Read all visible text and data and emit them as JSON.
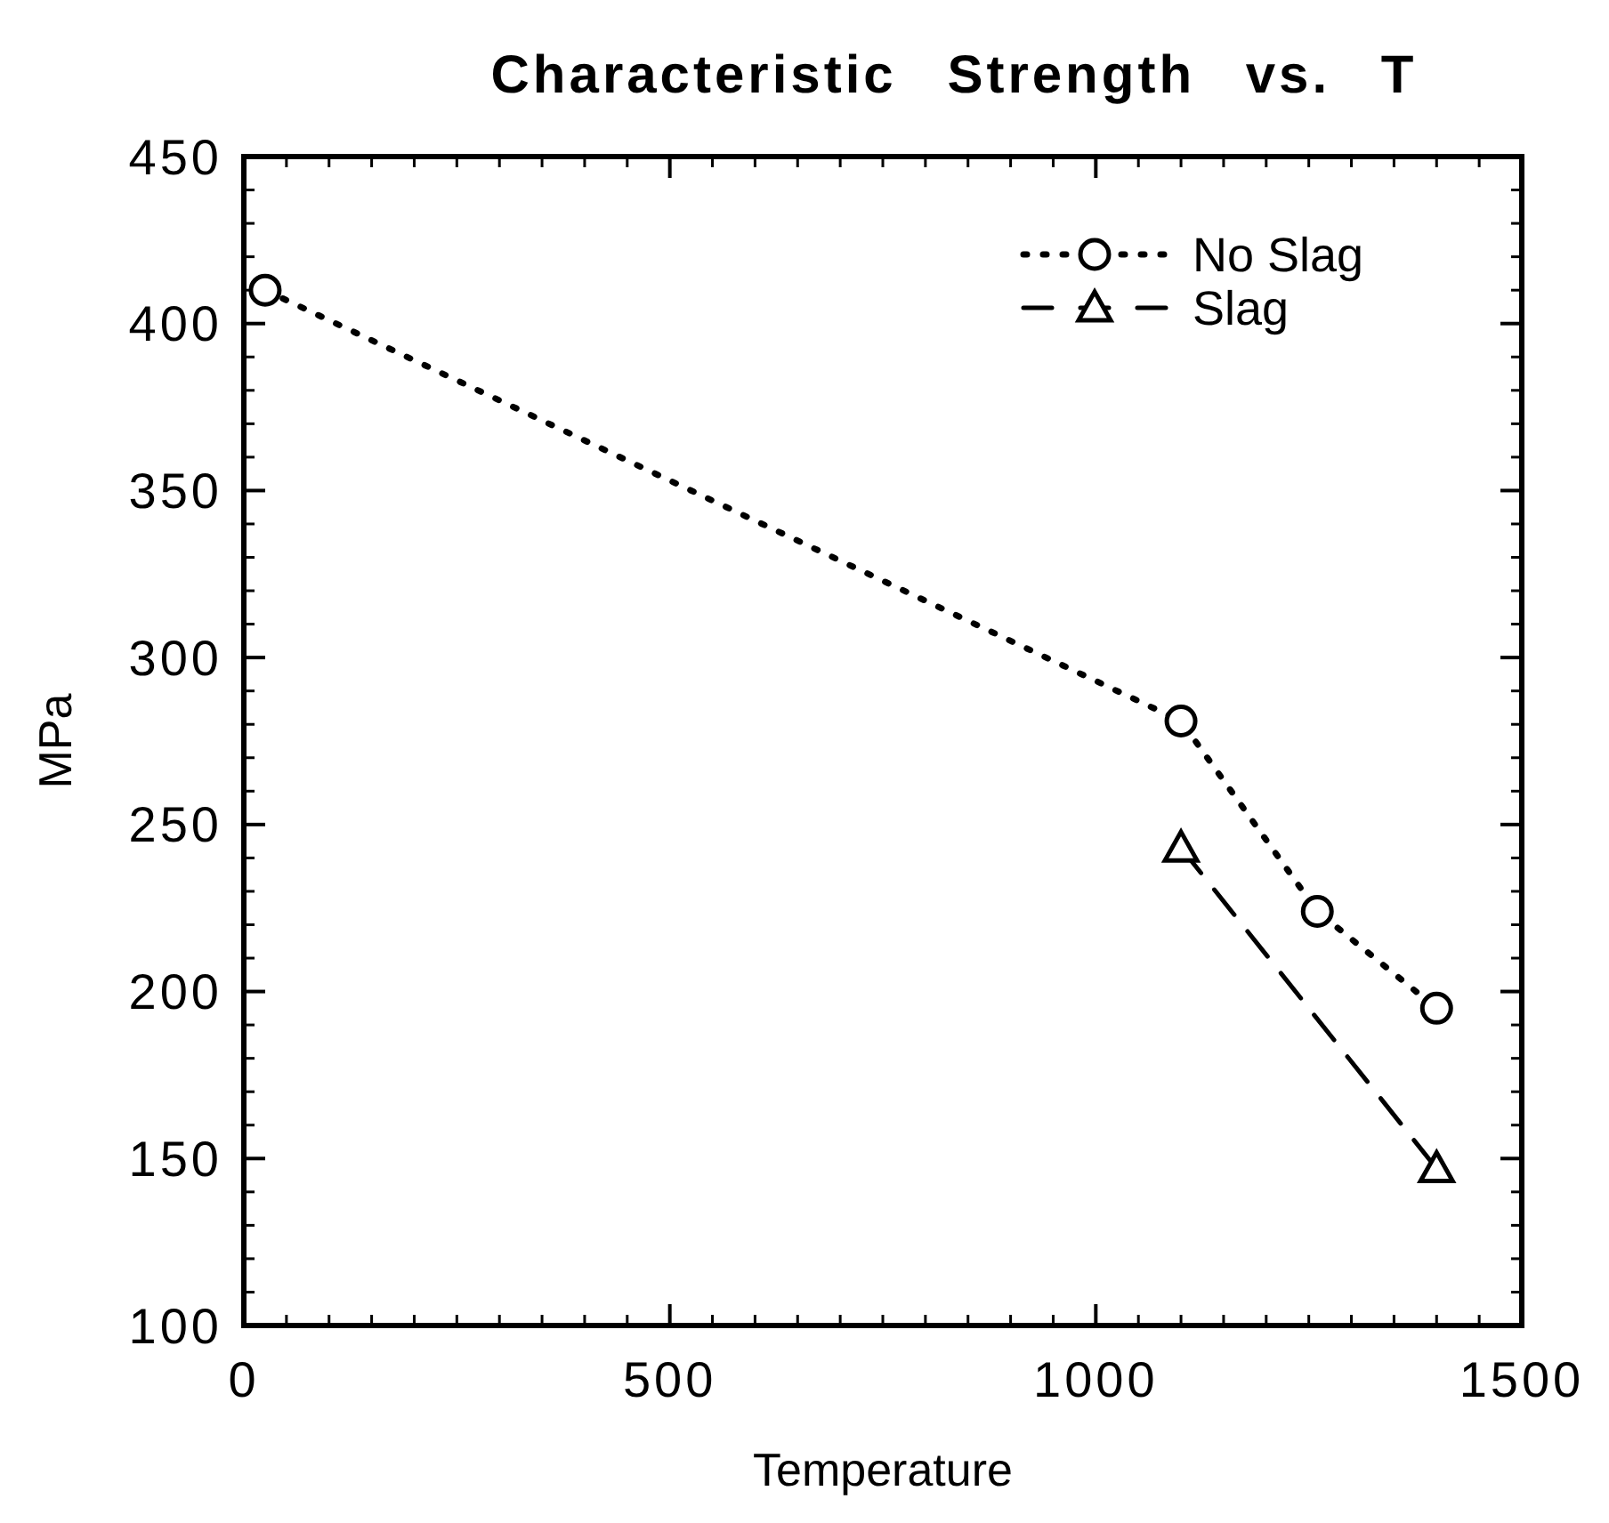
{
  "chart_data": {
    "type": "line",
    "title": "Characteristic Strength vs. T",
    "xlabel": "Temperature",
    "ylabel": "MPa",
    "xlim": [
      0,
      1500
    ],
    "xticks": [
      0,
      500,
      1000,
      1500
    ],
    "ylim": [
      100,
      450
    ],
    "yticks": [
      100,
      150,
      200,
      250,
      300,
      350,
      400,
      450
    ],
    "grid": false,
    "legend": "top right",
    "series": [
      {
        "name": "No Slag",
        "color": "#000000",
        "x": [
          25,
          1100,
          1260,
          1400
        ],
        "values": [
          410,
          281,
          224,
          195
        ],
        "marker": "circle",
        "line_style": "dotted"
      },
      {
        "name": "Slag",
        "color": "#000000",
        "x": [
          1100,
          1400
        ],
        "values": [
          243,
          147
        ],
        "marker": "triangle",
        "line_style": "dashed"
      }
    ]
  }
}
